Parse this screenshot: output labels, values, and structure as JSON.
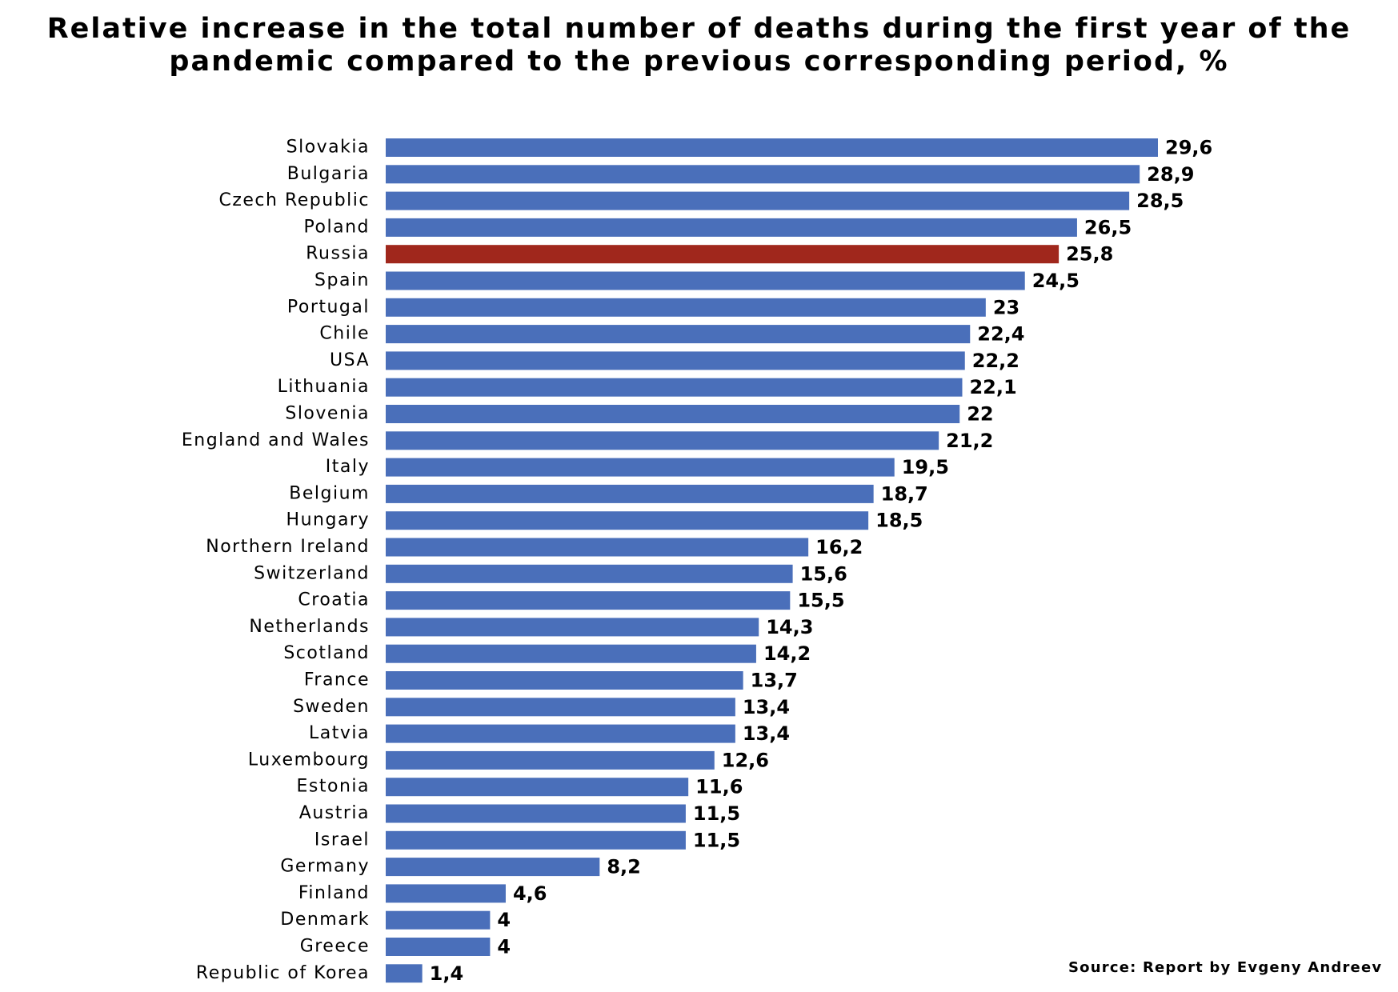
{
  "chart_data": {
    "type": "bar",
    "orientation": "horizontal",
    "title_lines": [
      "Relative increase in the total number of deaths during the first year of the",
      "pandemic compared to the previous corresponding period, %"
    ],
    "categories": [
      "Slovakia",
      "Bulgaria",
      "Czech Republic",
      "Poland",
      "Russia",
      "Spain",
      "Portugal",
      "Chile",
      "USA",
      "Lithuania",
      "Slovenia",
      "England and Wales",
      "Italy",
      "Belgium",
      "Hungary",
      "Northern Ireland",
      "Switzerland",
      "Croatia",
      "Netherlands",
      "Scotland",
      "France",
      "Sweden",
      "Latvia",
      "Luxembourg",
      "Estonia",
      "Austria",
      "Israel",
      "Germany",
      "Finland",
      "Denmark",
      "Greece",
      "Republic of Korea"
    ],
    "values": [
      29.6,
      28.9,
      28.5,
      26.5,
      25.8,
      24.5,
      23,
      22.4,
      22.2,
      22.1,
      22,
      21.2,
      19.5,
      18.7,
      18.5,
      16.2,
      15.6,
      15.5,
      14.3,
      14.2,
      13.7,
      13.4,
      13.4,
      12.6,
      11.6,
      11.5,
      11.5,
      8.2,
      4.6,
      4,
      4,
      1.4
    ],
    "value_labels": [
      "29,6",
      "28,9",
      "28,5",
      "26,5",
      "25,8",
      "24,5",
      "23",
      "22,4",
      "22,2",
      "22,1",
      "22",
      "21,2",
      "19,5",
      "18,7",
      "18,5",
      "16,2",
      "15,6",
      "15,5",
      "14,3",
      "14,2",
      "13,7",
      "13,4",
      "13,4",
      "12,6",
      "11,6",
      "11,5",
      "11,5",
      "8,2",
      "4,6",
      "4",
      "4",
      "1,4"
    ],
    "highlight_category": "Russia",
    "xlim": [
      0,
      29.6
    ],
    "grid": false,
    "legend": "none"
  },
  "colors": {
    "bar": "#4a6fba",
    "highlight_bar": "#a0271c",
    "highlight_label": "#a0271c",
    "text": "#000000"
  },
  "source": "Source: Report by Evgeny Andreev"
}
